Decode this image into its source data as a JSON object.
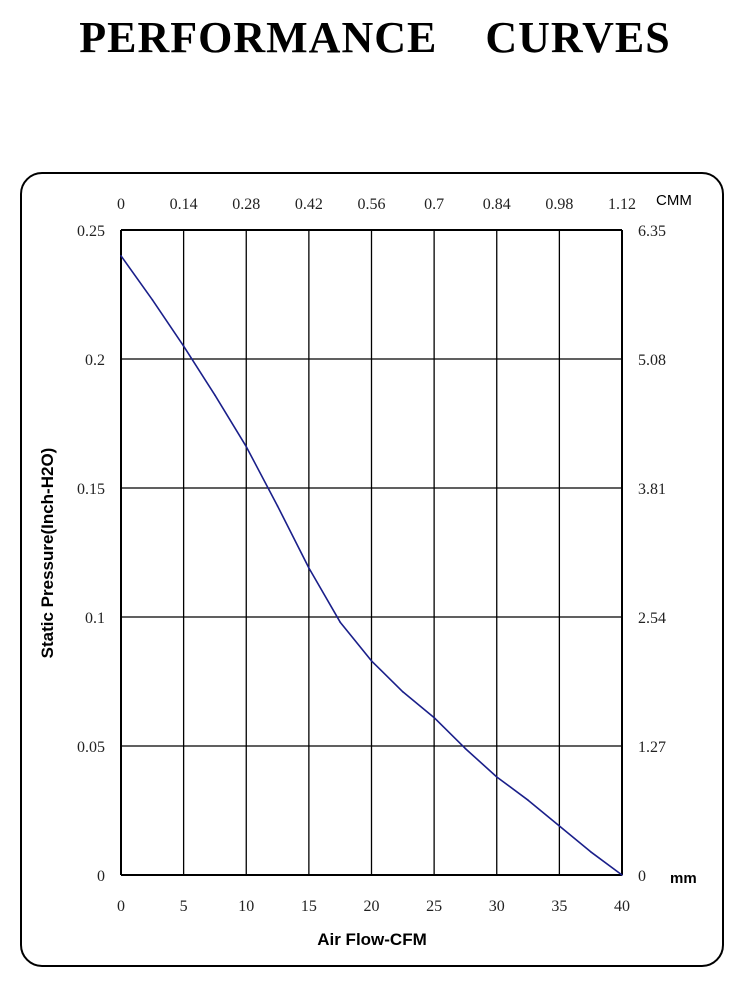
{
  "page": {
    "title": "PERFORMANCE    CURVES"
  },
  "chart_data": {
    "type": "line",
    "title": "",
    "xlabel": "Air Flow-CFM",
    "ylabel": "Static Pressure(Inch-H2O)",
    "xlim": [
      0,
      40
    ],
    "ylim": [
      0,
      0.25
    ],
    "grid": true,
    "x_ticks": [
      "0",
      "5",
      "10",
      "15",
      "20",
      "25",
      "30",
      "35",
      "40"
    ],
    "y_ticks": [
      "0",
      "0.05",
      "0.1",
      "0.15",
      "0.2",
      "0.25"
    ],
    "top_ticks": [
      "0",
      "0.14",
      "0.28",
      "0.42",
      "0.56",
      "0.7",
      "0.84",
      "0.98",
      "1.12"
    ],
    "top_unit": "CMM",
    "right_ticks": [
      "0",
      "1.27",
      "2.54",
      "3.81",
      "5.08",
      "6.35"
    ],
    "right_unit": "mm",
    "series": [
      {
        "color": "#1a1f8a",
        "x": [
          0,
          2.5,
          5,
          7.5,
          10,
          12.5,
          15,
          17.5,
          20,
          22.5,
          25,
          27.5,
          30,
          32.5,
          35,
          37.5,
          40
        ],
        "y": [
          0.24,
          0.223,
          0.205,
          0.186,
          0.166,
          0.143,
          0.119,
          0.098,
          0.083,
          0.071,
          0.061,
          0.049,
          0.038,
          0.029,
          0.019,
          0.009,
          0.0
        ]
      }
    ]
  }
}
